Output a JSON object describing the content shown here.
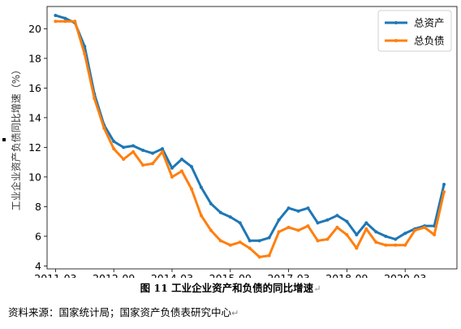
{
  "chart_data": {
    "type": "line",
    "title": "",
    "xlabel": "",
    "ylabel": "工业企业资产负债同比增速（%）",
    "xlim": [
      2010.95,
      2021.5
    ],
    "ylim": [
      3.8,
      21.5
    ],
    "x_ticks": [
      {
        "pos": 2011.167,
        "label": "2011-03"
      },
      {
        "pos": 2012.667,
        "label": "2012-09"
      },
      {
        "pos": 2014.167,
        "label": "2014-03"
      },
      {
        "pos": 2015.667,
        "label": "2015-09"
      },
      {
        "pos": 2017.167,
        "label": "2017-03"
      },
      {
        "pos": 2018.667,
        "label": "2018-09"
      },
      {
        "pos": 2020.167,
        "label": "2020-03"
      }
    ],
    "y_ticks": [
      4,
      6,
      8,
      10,
      12,
      14,
      16,
      18,
      20
    ],
    "grid": false,
    "legend_position": "top-right",
    "series": [
      {
        "name": "总资产",
        "color": "#1f77b4",
        "points": [
          [
            2011.167,
            20.9
          ],
          [
            2011.417,
            20.7
          ],
          [
            2011.667,
            20.4
          ],
          [
            2011.917,
            18.8
          ],
          [
            2012.167,
            15.6
          ],
          [
            2012.417,
            13.5
          ],
          [
            2012.667,
            12.4
          ],
          [
            2012.917,
            12.0
          ],
          [
            2013.167,
            12.1
          ],
          [
            2013.417,
            11.8
          ],
          [
            2013.667,
            11.6
          ],
          [
            2013.917,
            11.9
          ],
          [
            2014.167,
            10.6
          ],
          [
            2014.417,
            11.2
          ],
          [
            2014.667,
            10.7
          ],
          [
            2014.917,
            9.3
          ],
          [
            2015.167,
            8.2
          ],
          [
            2015.417,
            7.6
          ],
          [
            2015.667,
            7.3
          ],
          [
            2015.917,
            6.9
          ],
          [
            2016.167,
            5.7
          ],
          [
            2016.417,
            5.7
          ],
          [
            2016.667,
            5.9
          ],
          [
            2016.917,
            7.1
          ],
          [
            2017.167,
            7.9
          ],
          [
            2017.417,
            7.7
          ],
          [
            2017.667,
            7.9
          ],
          [
            2017.917,
            6.9
          ],
          [
            2018.167,
            7.1
          ],
          [
            2018.417,
            7.4
          ],
          [
            2018.667,
            7.0
          ],
          [
            2018.917,
            6.1
          ],
          [
            2019.167,
            6.9
          ],
          [
            2019.417,
            6.3
          ],
          [
            2019.667,
            6.0
          ],
          [
            2019.917,
            5.8
          ],
          [
            2020.167,
            6.2
          ],
          [
            2020.417,
            6.5
          ],
          [
            2020.667,
            6.7
          ],
          [
            2020.917,
            6.7
          ],
          [
            2021.167,
            9.5
          ]
        ]
      },
      {
        "name": "总负债",
        "color": "#ff7f0e",
        "points": [
          [
            2011.167,
            20.5
          ],
          [
            2011.417,
            20.5
          ],
          [
            2011.667,
            20.5
          ],
          [
            2011.917,
            18.3
          ],
          [
            2012.167,
            15.3
          ],
          [
            2012.417,
            13.3
          ],
          [
            2012.667,
            11.9
          ],
          [
            2012.917,
            11.2
          ],
          [
            2013.167,
            11.7
          ],
          [
            2013.417,
            10.8
          ],
          [
            2013.667,
            10.9
          ],
          [
            2013.917,
            11.7
          ],
          [
            2014.167,
            10.0
          ],
          [
            2014.417,
            10.4
          ],
          [
            2014.667,
            9.2
          ],
          [
            2014.917,
            7.4
          ],
          [
            2015.167,
            6.4
          ],
          [
            2015.417,
            5.7
          ],
          [
            2015.667,
            5.4
          ],
          [
            2015.917,
            5.6
          ],
          [
            2016.167,
            5.2
          ],
          [
            2016.417,
            4.6
          ],
          [
            2016.667,
            4.7
          ],
          [
            2016.917,
            6.3
          ],
          [
            2017.167,
            6.6
          ],
          [
            2017.417,
            6.4
          ],
          [
            2017.667,
            6.7
          ],
          [
            2017.917,
            5.7
          ],
          [
            2018.167,
            5.8
          ],
          [
            2018.417,
            6.6
          ],
          [
            2018.667,
            6.1
          ],
          [
            2018.917,
            5.2
          ],
          [
            2019.167,
            6.5
          ],
          [
            2019.417,
            5.6
          ],
          [
            2019.667,
            5.4
          ],
          [
            2019.917,
            5.4
          ],
          [
            2020.167,
            5.4
          ],
          [
            2020.417,
            6.4
          ],
          [
            2020.667,
            6.6
          ],
          [
            2020.917,
            6.1
          ],
          [
            2021.167,
            9.0
          ]
        ]
      }
    ]
  },
  "caption": {
    "text": "图  11 工业企业资产和负债的同比增速",
    "para_mark": "↵"
  },
  "source": {
    "text": "资料来源：国家统计局；国家资产负债表研究中心",
    "para_mark": "↵"
  }
}
